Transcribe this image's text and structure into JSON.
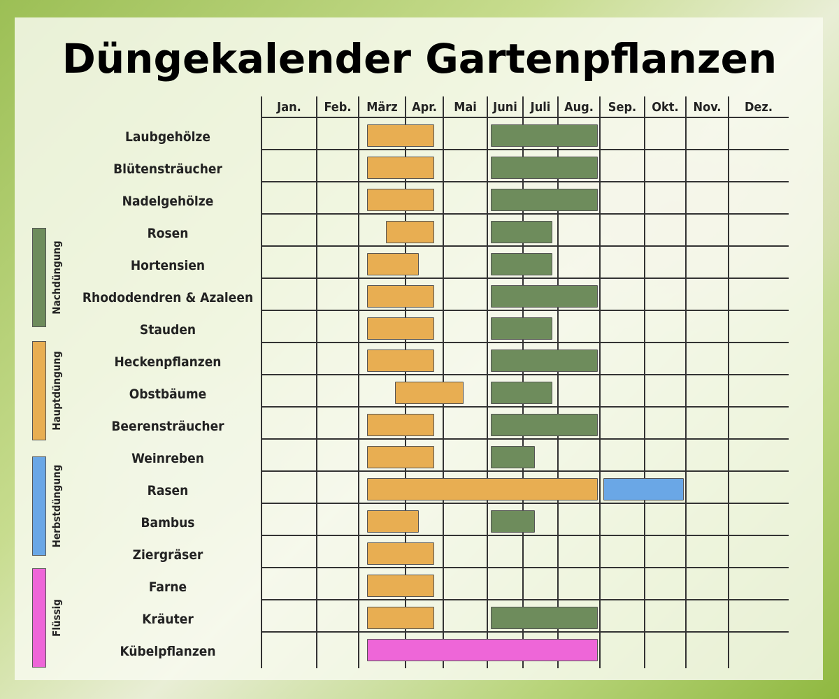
{
  "title": "Düngekalender Gartenpflanzen",
  "months": [
    "Jan.",
    "Feb.",
    "März",
    "Apr.",
    "Mai",
    "Juni",
    "Juli",
    "Aug.",
    "Sep.",
    "Okt.",
    "Nov.",
    "Dez."
  ],
  "legend": [
    {
      "label": "Nachdüngung",
      "color": "#6e8c5c"
    },
    {
      "label": "Hauptdüngung",
      "color": "#e8ae52"
    },
    {
      "label": "Herbstdüngung",
      "color": "#6aa7e6"
    },
    {
      "label": "Flüssig",
      "color": "#ee66d8"
    }
  ],
  "chart_data": {
    "type": "gantt",
    "title": "Düngekalender Gartenpflanzen",
    "categories": [
      "Laubgehölze",
      "Blütensträucher",
      "Nadelgehölze",
      "Rosen",
      "Hortensien",
      "Rhododendren & Azaleen",
      "Stauden",
      "Heckenpflanzen",
      "Obstbäume",
      "Beerensträucher",
      "Weinreben",
      "Rasen",
      "Bambus",
      "Ziergräser",
      "Farne",
      "Kräuter",
      "Kübelpflanzen"
    ],
    "x_labels": [
      "Jan.",
      "Feb.",
      "März",
      "Apr.",
      "Mai",
      "Juni",
      "Juli",
      "Aug.",
      "Sep.",
      "Okt.",
      "Nov.",
      "Dez."
    ],
    "series_colors": {
      "Hauptdüngung": "#e8ae52",
      "Nachdüngung": "#6e8c5c",
      "Herbstdüngung": "#6aa7e6",
      "Flüssig": "#ee66d8"
    },
    "bars": [
      {
        "row": 0,
        "series": "Hauptdüngung",
        "start": 3.1,
        "end": 4.8
      },
      {
        "row": 0,
        "series": "Nachdüngung",
        "start": 6.0,
        "end": 9.0
      },
      {
        "row": 1,
        "series": "Hauptdüngung",
        "start": 3.1,
        "end": 4.8
      },
      {
        "row": 1,
        "series": "Nachdüngung",
        "start": 6.0,
        "end": 9.0
      },
      {
        "row": 2,
        "series": "Hauptdüngung",
        "start": 3.1,
        "end": 4.8
      },
      {
        "row": 2,
        "series": "Nachdüngung",
        "start": 6.0,
        "end": 9.0
      },
      {
        "row": 3,
        "series": "Hauptdüngung",
        "start": 3.5,
        "end": 4.8
      },
      {
        "row": 3,
        "series": "Nachdüngung",
        "start": 6.0,
        "end": 7.9
      },
      {
        "row": 4,
        "series": "Hauptdüngung",
        "start": 3.1,
        "end": 4.4
      },
      {
        "row": 4,
        "series": "Nachdüngung",
        "start": 6.0,
        "end": 7.9
      },
      {
        "row": 5,
        "series": "Hauptdüngung",
        "start": 3.1,
        "end": 4.8
      },
      {
        "row": 5,
        "series": "Nachdüngung",
        "start": 6.0,
        "end": 9.0
      },
      {
        "row": 6,
        "series": "Hauptdüngung",
        "start": 3.1,
        "end": 4.8
      },
      {
        "row": 6,
        "series": "Nachdüngung",
        "start": 6.0,
        "end": 7.9
      },
      {
        "row": 7,
        "series": "Hauptdüngung",
        "start": 3.1,
        "end": 4.8
      },
      {
        "row": 7,
        "series": "Nachdüngung",
        "start": 6.0,
        "end": 9.0
      },
      {
        "row": 8,
        "series": "Hauptdüngung",
        "start": 3.7,
        "end": 5.5
      },
      {
        "row": 8,
        "series": "Nachdüngung",
        "start": 6.0,
        "end": 7.9
      },
      {
        "row": 9,
        "series": "Hauptdüngung",
        "start": 3.1,
        "end": 4.8
      },
      {
        "row": 9,
        "series": "Nachdüngung",
        "start": 6.0,
        "end": 9.0
      },
      {
        "row": 10,
        "series": "Hauptdüngung",
        "start": 3.1,
        "end": 4.8
      },
      {
        "row": 10,
        "series": "Nachdüngung",
        "start": 6.0,
        "end": 7.4
      },
      {
        "row": 11,
        "series": "Hauptdüngung",
        "start": 3.1,
        "end": 9.0
      },
      {
        "row": 11,
        "series": "Herbstdüngung",
        "start": 9.0,
        "end": 11.0
      },
      {
        "row": 12,
        "series": "Hauptdüngung",
        "start": 3.1,
        "end": 4.4
      },
      {
        "row": 12,
        "series": "Nachdüngung",
        "start": 6.0,
        "end": 7.4
      },
      {
        "row": 13,
        "series": "Hauptdüngung",
        "start": 3.1,
        "end": 4.8
      },
      {
        "row": 14,
        "series": "Hauptdüngung",
        "start": 3.1,
        "end": 4.8
      },
      {
        "row": 15,
        "series": "Hauptdüngung",
        "start": 3.1,
        "end": 4.8
      },
      {
        "row": 15,
        "series": "Nachdüngung",
        "start": 6.0,
        "end": 9.0
      },
      {
        "row": 16,
        "series": "Flüssig",
        "start": 3.1,
        "end": 9.0
      }
    ]
  }
}
